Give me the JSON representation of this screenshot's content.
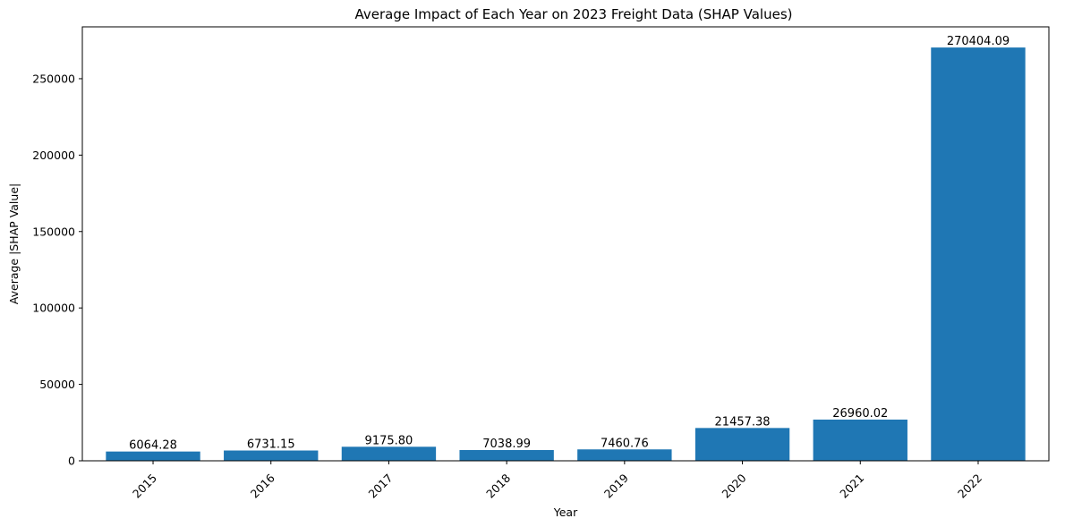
{
  "chart_data": {
    "type": "bar",
    "title": "Average Impact of Each Year on 2023 Freight Data (SHAP Values)",
    "xlabel": "Year",
    "ylabel": "Average |SHAP Value|",
    "categories": [
      "2015",
      "2016",
      "2017",
      "2018",
      "2019",
      "2020",
      "2021",
      "2022"
    ],
    "values": [
      6064.28,
      6731.15,
      9175.8,
      7038.99,
      7460.76,
      21457.38,
      26960.02,
      270404.09
    ],
    "value_labels": [
      "6064.28",
      "6731.15",
      "9175.80",
      "7038.99",
      "7460.76",
      "21457.38",
      "26960.02",
      "270404.09"
    ],
    "ylim": [
      0,
      283924.29
    ],
    "yticks": [
      0,
      50000,
      100000,
      150000,
      200000,
      250000
    ],
    "ytick_labels": [
      "0",
      "50000",
      "100000",
      "150000",
      "200000",
      "250000"
    ],
    "bar_color": "#1f77b4",
    "grid": false,
    "xtick_rotation": 45
  }
}
